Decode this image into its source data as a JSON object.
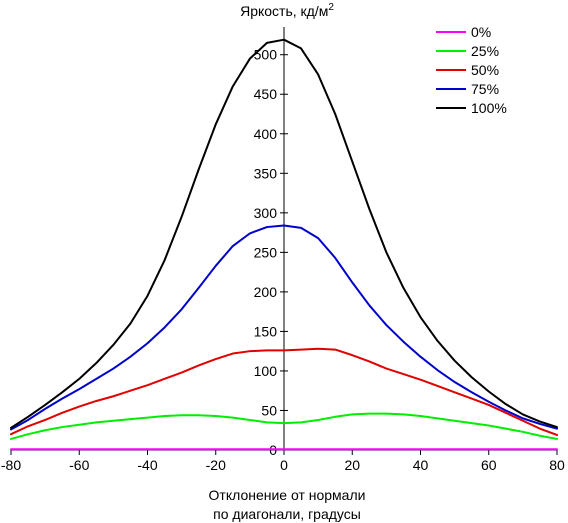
{
  "chart_data": {
    "type": "line",
    "title": "",
    "ylabel": "Яркость, кд/м",
    "ylabel_sup": "2",
    "xlabel_line1": "Отклонение от нормали",
    "xlabel_line2": "по диагонали, градусы",
    "xlim": [
      -80,
      80
    ],
    "ylim": [
      0,
      530
    ],
    "xticks": [
      -80,
      -60,
      -40,
      -20,
      0,
      20,
      40,
      60,
      80
    ],
    "yticks": [
      0,
      50,
      100,
      150,
      200,
      250,
      300,
      350,
      400,
      450,
      500
    ],
    "grid": false,
    "legend_position": "top-right",
    "x": [
      -80,
      -75,
      -70,
      -65,
      -60,
      -55,
      -50,
      -45,
      -40,
      -35,
      -30,
      -25,
      -20,
      -15,
      -10,
      -5,
      0,
      5,
      10,
      15,
      20,
      25,
      30,
      35,
      40,
      45,
      50,
      55,
      60,
      65,
      70,
      75,
      80
    ],
    "series": [
      {
        "name": "0%",
        "color": "#ff00ff",
        "values": [
          1,
          1,
          1,
          1,
          1,
          1,
          1,
          1,
          1,
          1,
          1,
          1,
          1,
          1,
          1,
          1,
          1,
          1,
          1,
          1,
          1,
          1,
          1,
          1,
          1,
          1,
          1,
          1,
          1,
          1,
          1,
          1,
          1
        ]
      },
      {
        "name": "25%",
        "color": "#00ee00",
        "values": [
          14,
          20,
          25,
          29,
          32,
          35,
          37,
          39,
          41,
          43,
          44,
          44,
          43,
          41,
          38,
          35,
          34,
          35,
          38,
          42,
          45,
          46,
          46,
          45,
          43,
          40,
          37,
          34,
          31,
          27,
          23,
          18,
          14
        ]
      },
      {
        "name": "50%",
        "color": "#e00000",
        "values": [
          20,
          30,
          38,
          47,
          55,
          62,
          68,
          75,
          82,
          90,
          98,
          107,
          115,
          122,
          125,
          126,
          126,
          127,
          128,
          127,
          120,
          112,
          103,
          96,
          89,
          81,
          73,
          65,
          57,
          47,
          37,
          27,
          19
        ]
      },
      {
        "name": "75%",
        "color": "#0000cc",
        "values": [
          26,
          38,
          52,
          65,
          77,
          90,
          103,
          118,
          135,
          155,
          178,
          205,
          233,
          258,
          274,
          282,
          284,
          281,
          268,
          243,
          212,
          183,
          158,
          137,
          118,
          101,
          86,
          73,
          61,
          50,
          40,
          33,
          27
        ]
      },
      {
        "name": "100%",
        "color": "#000000",
        "values": [
          28,
          42,
          57,
          73,
          90,
          110,
          133,
          160,
          195,
          240,
          295,
          355,
          412,
          460,
          495,
          515,
          519,
          508,
          475,
          425,
          365,
          305,
          250,
          205,
          168,
          138,
          113,
          92,
          74,
          58,
          45,
          36,
          29
        ]
      }
    ]
  }
}
